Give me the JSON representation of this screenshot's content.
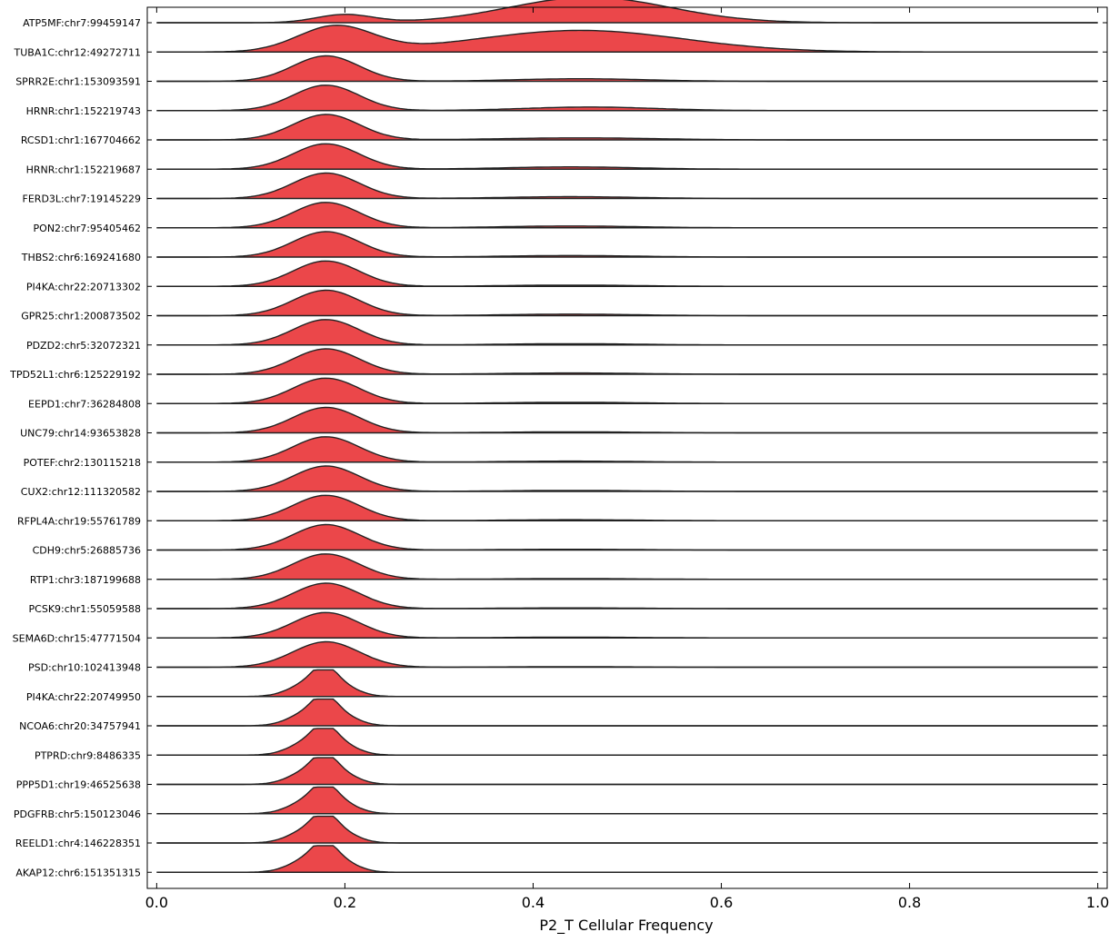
{
  "chart_data": {
    "type": "area",
    "subtype": "ridgeline / joy plot",
    "title": "",
    "xlabel": "P2_T Cellular Frequency",
    "ylabel": "",
    "xlim": [
      -0.01,
      1.01
    ],
    "x_ticks": [
      "0.0",
      "0.2",
      "0.4",
      "0.6",
      "0.8",
      "1.0"
    ],
    "grid": false,
    "legend": "none",
    "fill_color": "#e8272a",
    "line_color": "#222222",
    "series": [
      {
        "name": "ATP5MF:chr7:99459147",
        "peaks": [
          [
            0.2,
            0.03,
            0.32
          ],
          [
            0.46,
            0.085,
            1.0
          ]
        ]
      },
      {
        "name": "TUBA1C:chr12:49272711",
        "peaks": [
          [
            0.19,
            0.04,
            1.0
          ],
          [
            0.45,
            0.11,
            0.85
          ]
        ]
      },
      {
        "name": "SPRR2E:chr1:153093591",
        "peaks": [
          [
            0.18,
            0.035,
            1.0
          ],
          [
            0.45,
            0.07,
            0.1
          ]
        ]
      },
      {
        "name": "HRNR:chr1:152219743",
        "peaks": [
          [
            0.18,
            0.035,
            1.0
          ],
          [
            0.46,
            0.07,
            0.14
          ]
        ]
      },
      {
        "name": "RCSD1:chr1:167704662",
        "peaks": [
          [
            0.18,
            0.035,
            1.0
          ],
          [
            0.45,
            0.08,
            0.08
          ]
        ]
      },
      {
        "name": "HRNR:chr1:152219687",
        "peaks": [
          [
            0.18,
            0.035,
            1.0
          ],
          [
            0.44,
            0.07,
            0.09
          ]
        ]
      },
      {
        "name": "FERD3L:chr7:19145229",
        "peaks": [
          [
            0.18,
            0.035,
            1.0
          ],
          [
            0.44,
            0.07,
            0.07
          ]
        ]
      },
      {
        "name": "PON2:chr7:95405462",
        "peaks": [
          [
            0.18,
            0.035,
            1.0
          ],
          [
            0.44,
            0.07,
            0.07
          ]
        ]
      },
      {
        "name": "THBS2:chr6:169241680",
        "peaks": [
          [
            0.18,
            0.035,
            1.0
          ],
          [
            0.44,
            0.07,
            0.06
          ]
        ]
      },
      {
        "name": "PI4KA:chr22:20713302",
        "peaks": [
          [
            0.18,
            0.035,
            1.0
          ],
          [
            0.44,
            0.07,
            0.05
          ]
        ]
      },
      {
        "name": "GPR25:chr1:200873502",
        "peaks": [
          [
            0.18,
            0.035,
            1.0
          ],
          [
            0.44,
            0.07,
            0.06
          ]
        ]
      },
      {
        "name": "PDZD2:chr5:32072321",
        "peaks": [
          [
            0.18,
            0.035,
            1.0
          ],
          [
            0.44,
            0.07,
            0.05
          ]
        ]
      },
      {
        "name": "TPD52L1:chr6:125229192",
        "peaks": [
          [
            0.18,
            0.035,
            1.0
          ],
          [
            0.44,
            0.07,
            0.05
          ]
        ]
      },
      {
        "name": "EEPD1:chr7:36284808",
        "peaks": [
          [
            0.18,
            0.035,
            1.0
          ],
          [
            0.44,
            0.07,
            0.05
          ]
        ]
      },
      {
        "name": "UNC79:chr14:93653828",
        "peaks": [
          [
            0.18,
            0.035,
            1.0
          ],
          [
            0.44,
            0.07,
            0.04
          ]
        ]
      },
      {
        "name": "POTEF:chr2:130115218",
        "peaks": [
          [
            0.18,
            0.035,
            1.0
          ],
          [
            0.44,
            0.07,
            0.04
          ]
        ]
      },
      {
        "name": "CUX2:chr12:111320582",
        "peaks": [
          [
            0.18,
            0.035,
            1.0
          ],
          [
            0.44,
            0.07,
            0.04
          ]
        ]
      },
      {
        "name": "RFPL4A:chr19:55761789",
        "peaks": [
          [
            0.18,
            0.035,
            1.0
          ],
          [
            0.44,
            0.07,
            0.04
          ]
        ]
      },
      {
        "name": "CDH9:chr5:26885736",
        "peaks": [
          [
            0.18,
            0.035,
            1.0
          ],
          [
            0.44,
            0.07,
            0.03
          ]
        ]
      },
      {
        "name": "RTP1:chr3:187199688",
        "peaks": [
          [
            0.18,
            0.035,
            1.0
          ],
          [
            0.44,
            0.07,
            0.03
          ]
        ]
      },
      {
        "name": "PCSK9:chr1:55059588",
        "peaks": [
          [
            0.18,
            0.035,
            1.0
          ],
          [
            0.44,
            0.07,
            0.03
          ]
        ]
      },
      {
        "name": "SEMA6D:chr15:47771504",
        "peaks": [
          [
            0.18,
            0.035,
            1.0
          ],
          [
            0.44,
            0.07,
            0.03
          ]
        ]
      },
      {
        "name": "PSD:chr10:102413948",
        "peaks": [
          [
            0.18,
            0.035,
            1.0
          ],
          [
            0.44,
            0.07,
            0.02
          ]
        ]
      },
      {
        "name": "PI4KA:chr22:20749950",
        "peaks": [
          [
            0.16,
            0.02,
            0.45
          ],
          [
            0.178,
            0.012,
            0.55
          ],
          [
            0.19,
            0.02,
            0.5
          ]
        ]
      },
      {
        "name": "NCOA6:chr20:34757941",
        "peaks": [
          [
            0.16,
            0.02,
            0.45
          ],
          [
            0.178,
            0.012,
            0.55
          ],
          [
            0.19,
            0.02,
            0.5
          ]
        ]
      },
      {
        "name": "PTPRD:chr9:8486335",
        "peaks": [
          [
            0.16,
            0.02,
            0.45
          ],
          [
            0.178,
            0.012,
            0.55
          ],
          [
            0.19,
            0.02,
            0.5
          ]
        ]
      },
      {
        "name": "PPP5D1:chr19:46525638",
        "peaks": [
          [
            0.16,
            0.02,
            0.45
          ],
          [
            0.178,
            0.012,
            0.55
          ],
          [
            0.19,
            0.02,
            0.5
          ]
        ]
      },
      {
        "name": "PDGFRB:chr5:150123046",
        "peaks": [
          [
            0.16,
            0.02,
            0.45
          ],
          [
            0.178,
            0.012,
            0.55
          ],
          [
            0.19,
            0.02,
            0.5
          ]
        ]
      },
      {
        "name": "REELD1:chr4:146228351",
        "peaks": [
          [
            0.16,
            0.02,
            0.45
          ],
          [
            0.178,
            0.012,
            0.55
          ],
          [
            0.19,
            0.02,
            0.5
          ]
        ]
      },
      {
        "name": "AKAP12:chr6:151351315",
        "peaks": [
          [
            0.16,
            0.02,
            0.45
          ],
          [
            0.178,
            0.012,
            0.55
          ],
          [
            0.19,
            0.02,
            0.5
          ]
        ]
      }
    ]
  }
}
